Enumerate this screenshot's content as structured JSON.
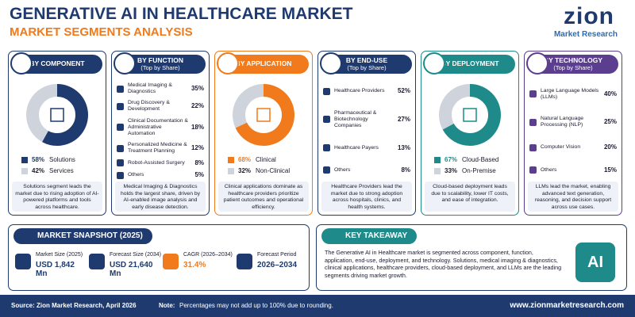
{
  "header": {
    "title": "GENERATIVE AI IN HEALTHCARE MARKET",
    "subtitle": "MARKET SEGMENTS ANALYSIS",
    "logo": "zion",
    "logo_sub": "Market Research"
  },
  "panels": [
    {
      "title": "BY COMPONENT",
      "color": "#1f3a6e",
      "segments": [
        {
          "name": "Solutions",
          "value": 58,
          "value_label": "58%",
          "color": "#1f3a6e"
        },
        {
          "name": "Services",
          "value": 42,
          "value_label": "42%",
          "color": "#cfd4dc"
        }
      ],
      "note": "Solutions segment leads the market due to rising adoption of AI-powered platforms and tools across healthcare."
    },
    {
      "title": "BY FUNCTION",
      "subtitle": "(Top by Share)",
      "color": "#1f3a6e",
      "items": [
        {
          "name": "Medical Imaging & Diagnostics",
          "share": "35%"
        },
        {
          "name": "Drug Discovery & Development",
          "share": "22%"
        },
        {
          "name": "Clinical Documentation & Administrative Automation",
          "share": "18%"
        },
        {
          "name": "Personalized Medicine & Treatment Planning",
          "share": "12%"
        },
        {
          "name": "Robot-Assisted Surgery",
          "share": "8%"
        },
        {
          "name": "Others",
          "share": "5%"
        }
      ],
      "note": "Medical Imaging & Diagnostics holds the largest share, driven by AI-enabled image analysis and early disease detection."
    },
    {
      "title": "BY APPLICATION",
      "color": "#f07a1c",
      "segments": [
        {
          "name": "Clinical",
          "value": 68,
          "value_label": "68%",
          "color": "#f07a1c"
        },
        {
          "name": "Non-Clinical",
          "value": 32,
          "value_label": "32%",
          "color": "#cfd4dc"
        }
      ],
      "note": "Clinical applications dominate as healthcare providers prioritize patient outcomes and operational efficiency."
    },
    {
      "title": "BY END-USE",
      "subtitle": "(Top by Share)",
      "color": "#1f3a6e",
      "items": [
        {
          "name": "Healthcare Providers",
          "share": "52%"
        },
        {
          "name": "Pharmaceutical & Biotechnology Companies",
          "share": "27%"
        },
        {
          "name": "Healthcare Payers",
          "share": "13%"
        },
        {
          "name": "Others",
          "share": "8%"
        }
      ],
      "note": "Healthcare Providers lead the market due to strong adoption across hospitals, clinics, and health systems."
    },
    {
      "title": "BY DEPLOYMENT",
      "color": "#1f8a8a",
      "segments": [
        {
          "name": "Cloud-Based",
          "value": 67,
          "value_label": "67%",
          "color": "#1f8a8a"
        },
        {
          "name": "On-Premise",
          "value": 33,
          "value_label": "33%",
          "color": "#cfd4dc"
        }
      ],
      "note": "Cloud-based deployment leads due to scalability, lower IT costs, and ease of integration."
    },
    {
      "title": "BY TECHNOLOGY",
      "subtitle": "(Top by Share)",
      "color": "#5b3e8f",
      "items": [
        {
          "name": "Large Language Models (LLMs)",
          "share": "40%"
        },
        {
          "name": "Natural Language Processing (NLP)",
          "share": "25%"
        },
        {
          "name": "Computer Vision",
          "share": "20%"
        },
        {
          "name": "Others",
          "share": "15%"
        }
      ],
      "note": "LLMs lead the market, enabling advanced text generation, reasoning, and decision support across use cases."
    }
  ],
  "snapshot": {
    "title": "MARKET SNAPSHOT (2025)",
    "metrics": [
      {
        "label": "Market Size (2025)",
        "value": "USD 1,842 Mn"
      },
      {
        "label": "Forecast Size (2034)",
        "value": "USD 21,640 Mn"
      },
      {
        "label": "CAGR (2026–2034)",
        "value": "31.4%"
      },
      {
        "label": "Forecast Period",
        "value": "2026–2034"
      }
    ]
  },
  "takeaway": {
    "title": "KEY TAKEAWAY",
    "text": "The Generative AI in Healthcare market is segmented across component, function, application, end-use, deployment, and technology. Solutions, medical imaging & diagnostics, clinical applications, healthcare providers, cloud-based deployment, and LLMs are the leading segments driving market growth.",
    "badge": "AI"
  },
  "footer": {
    "source": "Source: Zion Market Research, April 2026",
    "note_label": "Note:",
    "note": "Percentages may not add up to 100% due to rounding.",
    "url": "www.zionmarketresearch.com"
  }
}
